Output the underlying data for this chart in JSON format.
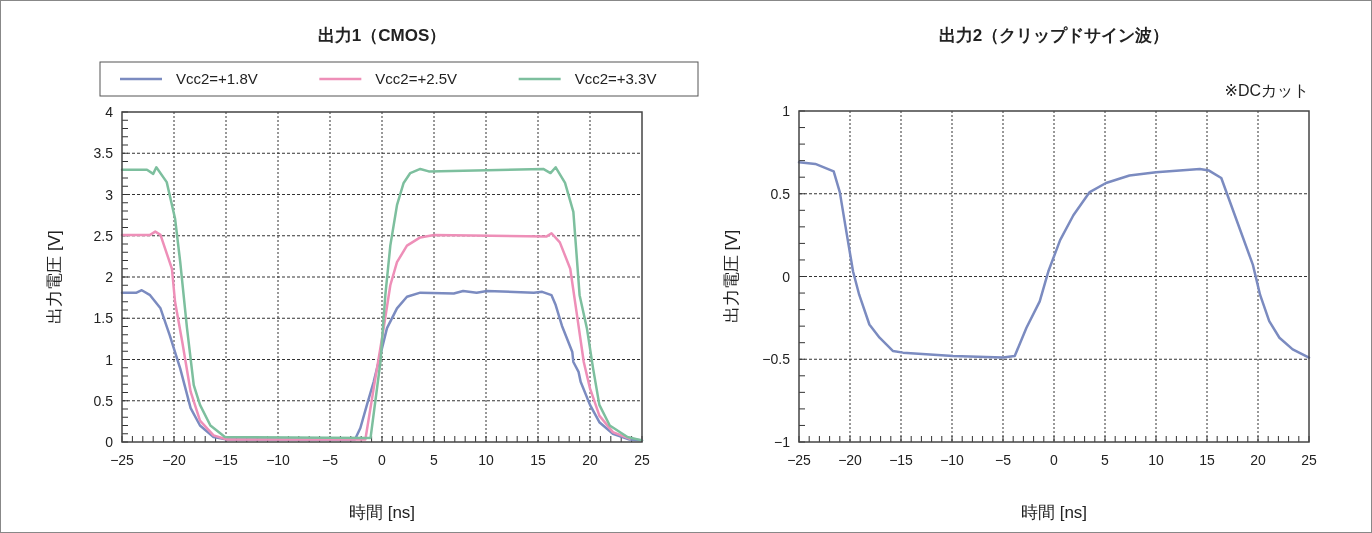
{
  "chart_data": [
    {
      "type": "line",
      "title": "出力1（CMOS）",
      "xlabel": "時間 [ns]",
      "ylabel": "出力電圧 [V]",
      "xlim": [
        -25,
        25
      ],
      "ylim": [
        0,
        4
      ],
      "xticks": [
        {
          "value": -25,
          "label": "−25"
        },
        {
          "value": -20,
          "label": "−20"
        },
        {
          "value": -15,
          "label": "−15"
        },
        {
          "value": -10,
          "label": "−10"
        },
        {
          "value": -5,
          "label": "−5"
        },
        0,
        5,
        10,
        15,
        20,
        25
      ],
      "yticks": [
        0,
        0.5,
        1,
        1.5,
        2,
        2.5,
        3,
        3.5,
        4
      ],
      "grid": true,
      "legend": "top",
      "line_style": "solid",
      "series": [
        {
          "name": "Vcc2=+1.8V",
          "color": "#7b8bc0",
          "x": [
            -25,
            -23.6,
            -23.1,
            -22.3,
            -21.3,
            -20.4,
            -19.4,
            -18.4,
            -17.5,
            -16.2,
            -14.9,
            -2.6,
            -2.08,
            -1.45,
            -0.8,
            -0.17,
            0.48,
            1.44,
            2.4,
            3.68,
            6.9,
            7.8,
            9.1,
            10.1,
            14.6,
            15.4,
            16.3,
            16.7,
            17.3,
            18.3,
            18.4,
            18.9,
            19.1,
            20.0,
            20.9,
            22.2,
            23.8,
            25
          ],
          "values": [
            1.81,
            1.81,
            1.84,
            1.78,
            1.62,
            1.29,
            0.89,
            0.41,
            0.2,
            0.06,
            0.03,
            0.03,
            0.17,
            0.45,
            0.73,
            1.05,
            1.38,
            1.62,
            1.76,
            1.81,
            1.8,
            1.83,
            1.81,
            1.83,
            1.81,
            1.82,
            1.78,
            1.66,
            1.41,
            1.09,
            0.97,
            0.85,
            0.73,
            0.45,
            0.24,
            0.1,
            0.03,
            0.02
          ]
        },
        {
          "name": "Vcc2=+2.5V",
          "color": "#ee8fb8",
          "x": [
            -25,
            -22.3,
            -21.8,
            -21.3,
            -20.2,
            -19.9,
            -19.2,
            -18.4,
            -17.5,
            -16.2,
            -14.9,
            -1.6,
            -0.8,
            0.16,
            0.8,
            1.44,
            2.4,
            3.68,
            5.0,
            15.8,
            16.3,
            17.1,
            18.1,
            18.7,
            19.4,
            20.0,
            20.9,
            22.2,
            23.8
          ],
          "values": [
            2.51,
            2.51,
            2.55,
            2.51,
            2.1,
            1.7,
            1.21,
            0.61,
            0.26,
            0.08,
            0.03,
            0.03,
            0.65,
            1.38,
            1.9,
            2.18,
            2.38,
            2.48,
            2.51,
            2.49,
            2.53,
            2.42,
            2.1,
            1.58,
            0.97,
            0.65,
            0.32,
            0.12,
            0.04
          ]
        },
        {
          "name": "Vcc2=+3.3V",
          "color": "#7dbf9e",
          "x": [
            -25,
            -22.6,
            -22.0,
            -21.7,
            -20.7,
            -19.9,
            -19.4,
            -18.75,
            -18.1,
            -17.5,
            -16.5,
            -15.1,
            -1.3,
            -1.1,
            -0.15,
            0.32,
            0.8,
            1.44,
            2.08,
            2.72,
            3.68,
            4.5,
            15.5,
            16.2,
            16.7,
            17.6,
            18.4,
            19.0,
            19.7,
            20.3,
            20.9,
            21.9,
            23.6,
            25
          ],
          "values": [
            3.3,
            3.3,
            3.25,
            3.33,
            3.15,
            2.71,
            2.18,
            1.38,
            0.69,
            0.45,
            0.2,
            0.06,
            0.05,
            0.05,
            0.97,
            1.78,
            2.38,
            2.87,
            3.14,
            3.26,
            3.31,
            3.28,
            3.31,
            3.26,
            3.33,
            3.14,
            2.79,
            1.78,
            1.38,
            0.89,
            0.45,
            0.2,
            0.06,
            0.02
          ]
        }
      ]
    },
    {
      "type": "line",
      "title": "出力2（クリップドサイン波）",
      "xlabel": "時間 [ns]",
      "ylabel": "出力電圧 [V]",
      "annotations": [
        "※DCカット"
      ],
      "xlim": [
        -25,
        25
      ],
      "ylim": [
        -1,
        1
      ],
      "xticks": [
        {
          "value": -25,
          "label": "−25"
        },
        {
          "value": -20,
          "label": "−20"
        },
        {
          "value": -15,
          "label": "−15"
        },
        {
          "value": -10,
          "label": "−10"
        },
        {
          "value": -5,
          "label": "−5"
        },
        0,
        5,
        10,
        15,
        20,
        25
      ],
      "yticks": [
        {
          "value": -1,
          "label": "−1"
        },
        {
          "value": -0.5,
          "label": "−0.5"
        },
        0,
        0.5,
        1
      ],
      "grid": true,
      "line_style": "solid",
      "series": [
        {
          "color": "#7b8bc0",
          "x": [
            -25,
            -23.4,
            -21.6,
            -21.0,
            -20.3,
            -19.7,
            -19.1,
            -18.1,
            -17.1,
            -15.8,
            -14.8,
            -9.9,
            -5.0,
            -3.85,
            -2.7,
            -1.4,
            -0.56,
            0.6,
            1.9,
            3.5,
            5.1,
            7.4,
            10.0,
            14.3,
            15.2,
            16.4,
            18.2,
            19.5,
            20.2,
            21.1,
            22.1,
            23.4,
            25
          ],
          "values": [
            0.69,
            0.68,
            0.635,
            0.51,
            0.25,
            0.03,
            -0.11,
            -0.29,
            -0.37,
            -0.45,
            -0.46,
            -0.48,
            -0.49,
            -0.48,
            -0.31,
            -0.15,
            0.03,
            0.22,
            0.37,
            0.51,
            0.565,
            0.61,
            0.63,
            0.65,
            0.64,
            0.595,
            0.29,
            0.07,
            -0.11,
            -0.27,
            -0.37,
            -0.44,
            -0.49
          ]
        }
      ]
    }
  ]
}
